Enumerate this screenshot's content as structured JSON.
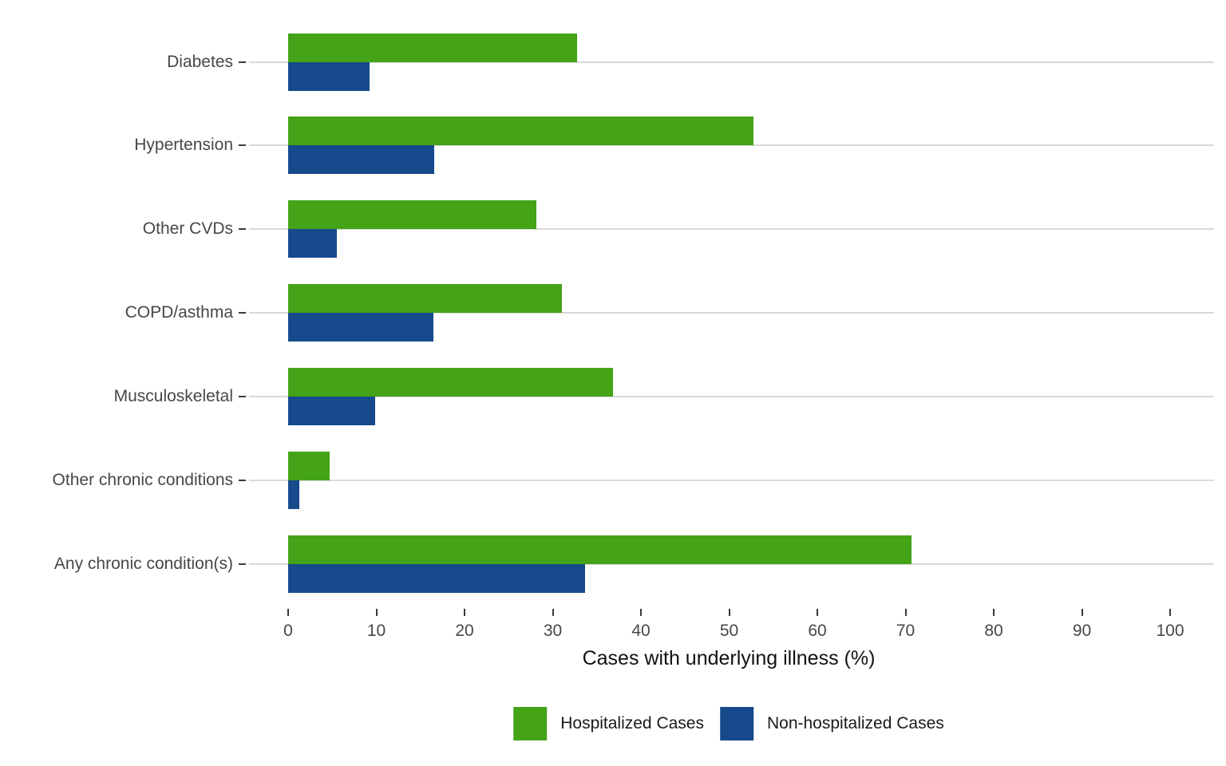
{
  "chart_data": {
    "type": "bar",
    "orientation": "horizontal",
    "title": "",
    "xlabel": "Cases with underlying illness (%)",
    "ylabel": "",
    "xlim": [
      0,
      100
    ],
    "xticks": [
      0,
      10,
      20,
      30,
      40,
      50,
      60,
      70,
      80,
      90,
      100
    ],
    "grid": "horizontal category reference lines only",
    "legend_position": "bottom",
    "categories": [
      "Diabetes",
      "Hypertension",
      "Other CVDs",
      "COPD/asthma",
      "Musculoskeletal",
      "Other chronic conditions",
      "Any chronic condition(s)"
    ],
    "series": [
      {
        "name": "Hospitalized Cases",
        "color": "#44a316",
        "values": [
          32.8,
          52.8,
          28.1,
          31.0,
          36.8,
          4.7,
          70.7
        ]
      },
      {
        "name": "Non-hospitalized Cases",
        "color": "#164a8c",
        "values": [
          9.2,
          16.6,
          5.5,
          16.5,
          9.9,
          1.3,
          33.7
        ]
      }
    ]
  }
}
